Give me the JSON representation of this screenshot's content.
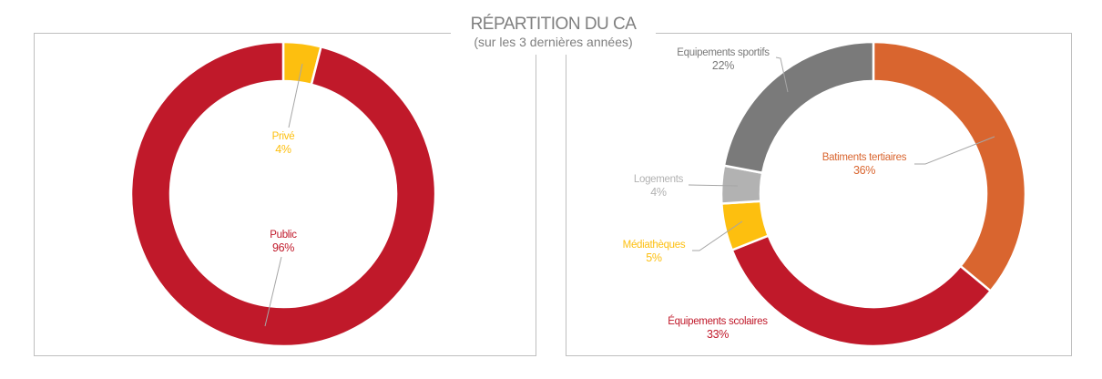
{
  "header": {
    "title": "RÉPARTITION DU CA",
    "subtitle": "(sur les 3 dernières années)"
  },
  "colors": {
    "public": "#c0192a",
    "prive": "#fdbf0f",
    "batiments_tertiaires": "#d9652f",
    "equipements_scolaires": "#c0192a",
    "mediatheques": "#fdbf0f",
    "logements": "#b2b2b2",
    "equipements_sportifs": "#7a7a7a",
    "leader_line": "#a6a6a6",
    "frame": "#bfbfbf",
    "title": "#7f7f7f"
  },
  "left_chart": {
    "labels": [
      {
        "name": "Privé",
        "pct": "4%"
      },
      {
        "name": "Public",
        "pct": "96%"
      }
    ]
  },
  "right_chart": {
    "labels": [
      {
        "name": "Batiments tertiaires",
        "pct": "36%"
      },
      {
        "name": "Équipements scolaires",
        "pct": "33%"
      },
      {
        "name": "Médiathèques",
        "pct": "5%"
      },
      {
        "name": "Logements",
        "pct": "4%"
      },
      {
        "name": "Equipements sportifs",
        "pct": "22%"
      }
    ]
  },
  "chart_data": [
    {
      "type": "pie",
      "variant": "donut",
      "title": "RÉPARTITION DU CA",
      "subtitle": "(sur les 3 dernières années)",
      "categories": [
        "Privé",
        "Public"
      ],
      "values": [
        4,
        96
      ],
      "colors": [
        "#fdbf0f",
        "#c0192a"
      ],
      "start_angle": "12 o'clock, clockwise",
      "legend": "data labels with leader lines"
    },
    {
      "type": "pie",
      "variant": "donut",
      "title": "RÉPARTITION DU CA",
      "subtitle": "(sur les 3 dernières années)",
      "categories": [
        "Batiments tertiaires",
        "Équipements scolaires",
        "Médiathèques",
        "Logements",
        "Equipements sportifs"
      ],
      "values": [
        36,
        33,
        5,
        4,
        22
      ],
      "colors": [
        "#d9652f",
        "#c0192a",
        "#fdbf0f",
        "#b2b2b2",
        "#7a7a7a"
      ],
      "start_angle": "12 o'clock, clockwise",
      "legend": "data labels with leader lines"
    }
  ]
}
